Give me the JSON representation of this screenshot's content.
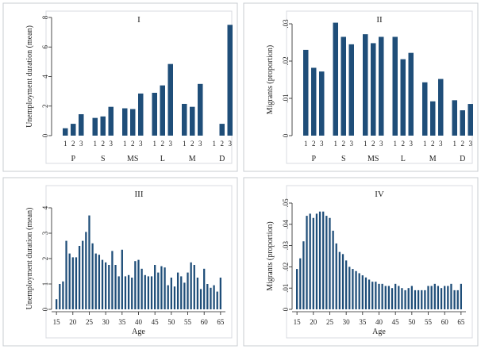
{
  "chart_data": [
    {
      "id": "panel-1",
      "type": "bar",
      "title": "I",
      "xlabel": "",
      "ylabel": "Unemployment duration (mean)",
      "ylim": [
        0,
        8
      ],
      "yticks": [
        "0",
        "2",
        "4",
        "6",
        "8"
      ],
      "ytick_values": [
        0,
        2,
        4,
        6,
        8
      ],
      "groups": [
        {
          "label": "P",
          "bars": [
            "1",
            "2",
            "3"
          ],
          "values": [
            0.5,
            0.8,
            1.45
          ]
        },
        {
          "label": "S",
          "bars": [
            "1",
            "2",
            "3"
          ],
          "values": [
            1.2,
            1.3,
            1.95
          ]
        },
        {
          "label": "MS",
          "bars": [
            "1",
            "2",
            "3"
          ],
          "values": [
            1.85,
            1.8,
            2.85
          ]
        },
        {
          "label": "L",
          "bars": [
            "1",
            "2",
            "3"
          ],
          "values": [
            2.9,
            3.4,
            4.85
          ]
        },
        {
          "label": "M",
          "bars": [
            "1",
            "2",
            "3"
          ],
          "values": [
            2.15,
            1.95,
            3.5
          ]
        },
        {
          "label": "D",
          "bars": [
            "1",
            "2",
            "3"
          ],
          "values": [
            0,
            0.8,
            7.5
          ]
        }
      ]
    },
    {
      "id": "panel-2",
      "type": "bar",
      "title": "II",
      "xlabel": "",
      "ylabel": "Migrants (proportion)",
      "ylim": [
        0,
        0.03
      ],
      "yticks": [
        "0",
        ".01",
        ".02",
        ".03"
      ],
      "ytick_values": [
        0,
        0.01,
        0.02,
        0.03
      ],
      "groups": [
        {
          "label": "P",
          "bars": [
            "1",
            "2",
            "3"
          ],
          "values": [
            0.023,
            0.0182,
            0.0172
          ]
        },
        {
          "label": "S",
          "bars": [
            "1",
            "2",
            "3"
          ],
          "values": [
            0.0303,
            0.0265,
            0.0245
          ]
        },
        {
          "label": "MS",
          "bars": [
            "1",
            "2",
            "3"
          ],
          "values": [
            0.0272,
            0.0248,
            0.0265
          ]
        },
        {
          "label": "L",
          "bars": [
            "1",
            "2",
            "3"
          ],
          "values": [
            0.0265,
            0.0205,
            0.0222
          ]
        },
        {
          "label": "M",
          "bars": [
            "1",
            "2",
            "3"
          ],
          "values": [
            0.0143,
            0.0092,
            0.0152
          ]
        },
        {
          "label": "D",
          "bars": [
            "1",
            "2",
            "3"
          ],
          "values": [
            0.0095,
            0.0068,
            0.0085
          ]
        }
      ]
    },
    {
      "id": "panel-3",
      "type": "bar",
      "title": "III",
      "xlabel": "Age",
      "ylabel": "Unemployment duration (mean)",
      "ylim": [
        0,
        4
      ],
      "yticks": [
        "0",
        "1",
        "2",
        "3",
        "4"
      ],
      "ytick_values": [
        0,
        1,
        2,
        3,
        4
      ],
      "xlim": [
        14,
        66
      ],
      "xticks": [
        "15",
        "20",
        "25",
        "30",
        "35",
        "40",
        "45",
        "50",
        "55",
        "60",
        "65"
      ],
      "xtick_values": [
        15,
        20,
        25,
        30,
        35,
        40,
        45,
        50,
        55,
        60,
        65
      ],
      "x": [
        15,
        16,
        17,
        18,
        19,
        20,
        21,
        22,
        23,
        24,
        25,
        26,
        27,
        28,
        29,
        30,
        31,
        32,
        33,
        34,
        35,
        36,
        37,
        38,
        39,
        40,
        41,
        42,
        43,
        44,
        45,
        46,
        47,
        48,
        49,
        50,
        51,
        52,
        53,
        54,
        55,
        56,
        57,
        58,
        59,
        60,
        61,
        62,
        63,
        64,
        65
      ],
      "values": [
        0.4,
        1.0,
        1.1,
        2.7,
        2.2,
        2.05,
        2.05,
        2.5,
        2.7,
        3.05,
        3.7,
        2.6,
        2.2,
        2.15,
        1.95,
        1.85,
        1.75,
        2.3,
        1.75,
        1.3,
        2.35,
        1.3,
        1.35,
        1.25,
        1.9,
        1.95,
        1.6,
        1.35,
        1.3,
        1.3,
        1.75,
        1.45,
        1.7,
        1.65,
        0.95,
        1.25,
        0.9,
        1.45,
        1.3,
        1.05,
        1.45,
        1.85,
        1.75,
        1.25,
        0.8,
        1.6,
        1.0,
        0.85,
        0.95,
        0.7,
        1.25
      ]
    },
    {
      "id": "panel-4",
      "type": "bar",
      "title": "IV",
      "xlabel": "Age",
      "ylabel": "Migrants (proportion)",
      "ylim": [
        0,
        0.05
      ],
      "yticks": [
        "0",
        ".01",
        ".02",
        ".03",
        ".04",
        ".05"
      ],
      "ytick_values": [
        0,
        0.01,
        0.02,
        0.03,
        0.04,
        0.05
      ],
      "xlim": [
        14,
        66
      ],
      "xticks": [
        "15",
        "20",
        "25",
        "30",
        "35",
        "40",
        "45",
        "50",
        "55",
        "60",
        "65"
      ],
      "xtick_values": [
        15,
        20,
        25,
        30,
        35,
        40,
        45,
        50,
        55,
        60,
        65
      ],
      "x": [
        15,
        16,
        17,
        18,
        19,
        20,
        21,
        22,
        23,
        24,
        25,
        26,
        27,
        28,
        29,
        30,
        31,
        32,
        33,
        34,
        35,
        36,
        37,
        38,
        39,
        40,
        41,
        42,
        43,
        44,
        45,
        46,
        47,
        48,
        49,
        50,
        51,
        52,
        53,
        54,
        55,
        56,
        57,
        58,
        59,
        60,
        61,
        62,
        63,
        64,
        65
      ],
      "values": [
        0.019,
        0.024,
        0.032,
        0.044,
        0.045,
        0.043,
        0.045,
        0.046,
        0.046,
        0.044,
        0.043,
        0.037,
        0.031,
        0.027,
        0.026,
        0.023,
        0.02,
        0.019,
        0.018,
        0.017,
        0.016,
        0.015,
        0.014,
        0.013,
        0.013,
        0.012,
        0.012,
        0.011,
        0.011,
        0.01,
        0.012,
        0.011,
        0.01,
        0.009,
        0.01,
        0.011,
        0.009,
        0.009,
        0.009,
        0.009,
        0.011,
        0.011,
        0.012,
        0.011,
        0.01,
        0.011,
        0.011,
        0.012,
        0.009,
        0.009,
        0.012
      ]
    }
  ]
}
